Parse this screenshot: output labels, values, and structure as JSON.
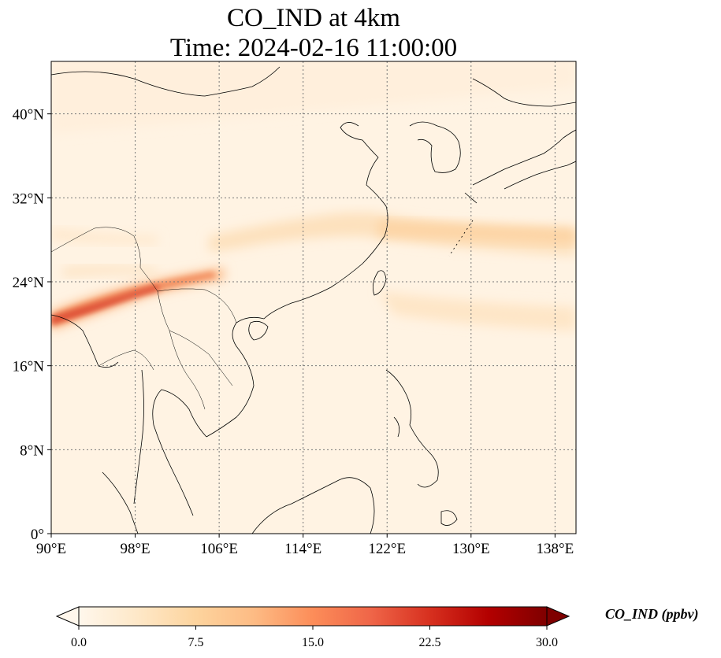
{
  "title": {
    "line1": "CO_IND at 4km",
    "line2": "Time: 2024-02-16 11:00:00"
  },
  "map": {
    "lon_range": [
      90,
      140
    ],
    "lat_range": [
      0,
      45
    ],
    "lon_ticks": [
      "90°E",
      "98°E",
      "106°E",
      "114°E",
      "122°E",
      "130°E",
      "138°E"
    ],
    "lat_ticks": [
      "0°",
      "8°N",
      "16°N",
      "24°N",
      "32°N",
      "40°N"
    ],
    "gridlines": true
  },
  "colorbar": {
    "label": "CO_IND (ppbv)",
    "ticks": [
      "0.0",
      "7.5",
      "15.0",
      "22.5",
      "30.0"
    ],
    "range": [
      0,
      30
    ],
    "colormap": "OrRd",
    "extend": "both",
    "colors": [
      "#fff7ec",
      "#fee8c8",
      "#fdd49e",
      "#fdbb84",
      "#fc8d59",
      "#ef6548",
      "#d7301f",
      "#b30000",
      "#7f0000"
    ]
  }
}
